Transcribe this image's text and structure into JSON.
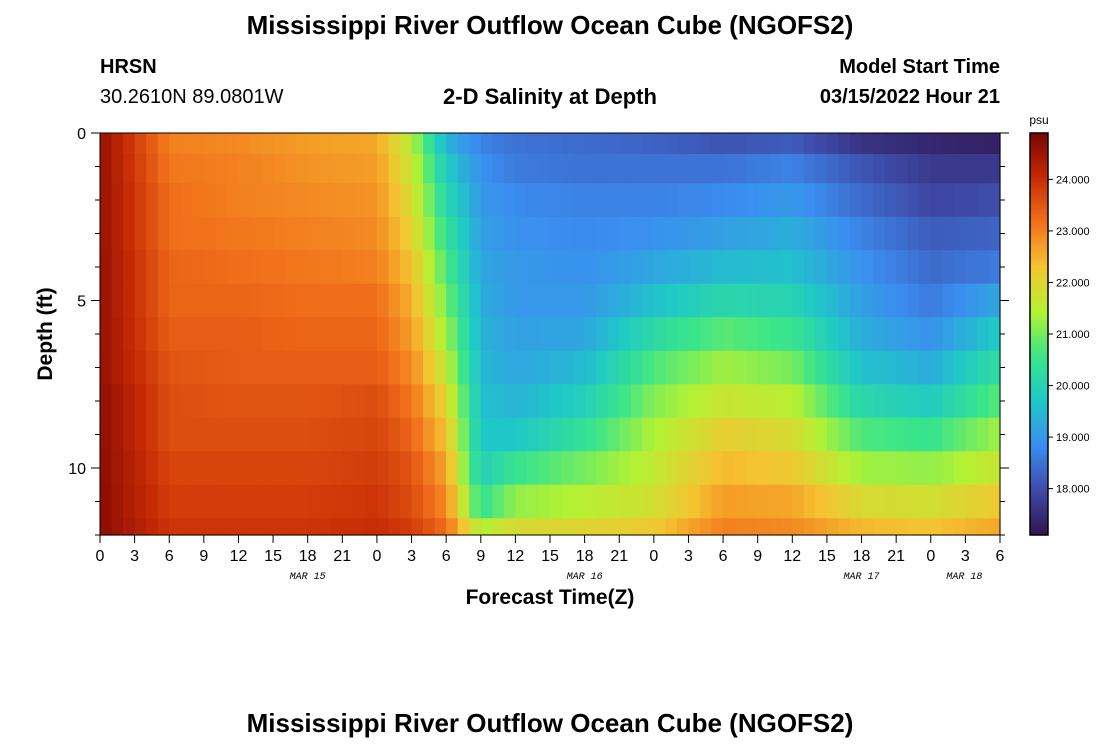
{
  "header": {
    "title": "Mississippi River Outflow Ocean Cube (NGOFS2)",
    "station": "HRSN",
    "coords": "30.2610N  89.0801W",
    "subtitle": "2-D Salinity at Depth",
    "model_start_label": "Model Start Time",
    "model_start_value": "03/15/2022 Hour 21"
  },
  "footer": {
    "title": "Mississippi River Outflow Ocean Cube (NGOFS2)"
  },
  "chart_data": {
    "type": "heatmap",
    "title": "2-D Salinity at Depth",
    "xlabel": "Forecast Time(Z)",
    "ylabel": "Depth (ft)",
    "x_unit": "hours",
    "x_start": "2022-03-15 00Z",
    "x_end": "2022-03-18 06Z",
    "xticks": [
      "0",
      "3",
      "6",
      "9",
      "12",
      "15",
      "18",
      "21",
      "0",
      "3",
      "6",
      "9",
      "12",
      "15",
      "18",
      "21",
      "0",
      "3",
      "6",
      "9",
      "12",
      "15",
      "18",
      "21",
      "0",
      "3",
      "6"
    ],
    "date_labels": [
      "MAR 15",
      "MAR 16",
      "MAR 17",
      "MAR 18"
    ],
    "yticks": [
      "0",
      "5",
      "10"
    ],
    "ylim": [
      0,
      12
    ],
    "y_reversed": true,
    "colorbar": {
      "label": "psu",
      "ticks": [
        "24.000",
        "23.000",
        "22.000",
        "21.000",
        "20.000",
        "19.000",
        "18.000"
      ],
      "range": [
        17.1,
        24.9
      ],
      "colors": [
        "#2f1550",
        "#3e4aa8",
        "#3b8df0",
        "#1fc8c8",
        "#3ae58a",
        "#b3f233",
        "#f5c431",
        "#f2701b",
        "#c62a04",
        "#7a0403"
      ]
    },
    "depth_layers_ft": [
      0.25,
      1,
      2,
      3,
      4,
      5,
      6,
      7,
      8,
      9,
      10,
      11,
      12
    ],
    "time_hours": [
      0,
      6,
      12,
      18,
      24,
      27,
      30,
      33,
      36,
      42,
      48,
      54,
      60,
      66,
      72,
      78
    ],
    "salinity_psu": [
      [
        24.6,
        23.0,
        22.9,
        22.7,
        22.6,
        21.5,
        19.4,
        18.7,
        18.5,
        18.4,
        18.3,
        18.1,
        18.2,
        17.6,
        17.4,
        17.3
      ],
      [
        24.6,
        23.1,
        23.0,
        22.8,
        22.7,
        21.7,
        19.8,
        18.9,
        18.6,
        18.5,
        18.5,
        18.5,
        18.7,
        18.1,
        17.7,
        17.7
      ],
      [
        24.6,
        23.2,
        23.0,
        22.9,
        22.8,
        21.9,
        20.1,
        19.0,
        18.8,
        18.7,
        18.7,
        18.8,
        19.0,
        18.4,
        17.9,
        18.0
      ],
      [
        24.6,
        23.2,
        23.1,
        23.0,
        22.9,
        22.1,
        20.4,
        19.1,
        18.9,
        18.8,
        18.9,
        19.1,
        19.3,
        18.7,
        18.2,
        18.3
      ],
      [
        24.6,
        23.3,
        23.2,
        23.1,
        23.0,
        22.3,
        20.7,
        19.2,
        19.0,
        18.9,
        19.2,
        19.5,
        19.6,
        18.9,
        18.4,
        18.6
      ],
      [
        24.6,
        23.3,
        23.3,
        23.2,
        23.2,
        22.5,
        21.0,
        19.3,
        19.0,
        19.0,
        19.6,
        20.1,
        20.0,
        19.1,
        18.6,
        19.2
      ],
      [
        24.6,
        23.4,
        23.4,
        23.3,
        23.3,
        22.7,
        21.3,
        19.4,
        19.1,
        19.2,
        20.2,
        20.8,
        20.5,
        19.3,
        18.9,
        19.8
      ],
      [
        24.6,
        23.5,
        23.4,
        23.4,
        23.4,
        22.9,
        21.6,
        19.5,
        19.2,
        19.5,
        20.7,
        21.3,
        21.0,
        19.6,
        19.3,
        20.3
      ],
      [
        24.7,
        23.6,
        23.5,
        23.5,
        23.6,
        23.1,
        22.0,
        19.6,
        19.4,
        19.9,
        21.1,
        21.7,
        21.5,
        20.1,
        19.8,
        20.8
      ],
      [
        24.7,
        23.6,
        23.6,
        23.6,
        23.7,
        23.3,
        22.3,
        19.7,
        19.7,
        20.4,
        21.4,
        22.1,
        21.9,
        20.7,
        20.5,
        21.3
      ],
      [
        24.7,
        23.7,
        23.7,
        23.7,
        23.8,
        23.5,
        22.6,
        19.9,
        20.5,
        21.0,
        21.6,
        22.4,
        22.2,
        21.3,
        21.2,
        21.7
      ],
      [
        24.7,
        23.8,
        23.8,
        23.8,
        23.9,
        23.6,
        22.9,
        20.4,
        21.2,
        21.5,
        21.8,
        22.7,
        22.6,
        21.9,
        21.8,
        22.2
      ],
      [
        24.7,
        23.9,
        23.9,
        23.9,
        24.0,
        23.8,
        23.2,
        21.4,
        21.9,
        22.0,
        22.2,
        23.0,
        22.9,
        22.4,
        22.3,
        22.6
      ]
    ]
  }
}
